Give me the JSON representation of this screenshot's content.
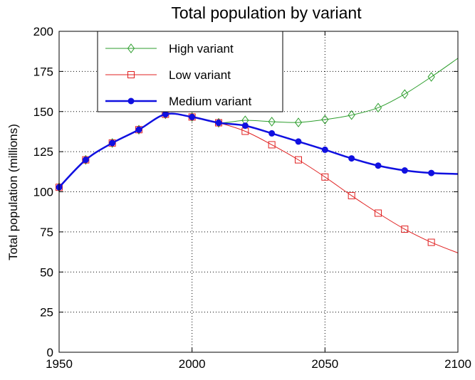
{
  "chart_data": {
    "type": "line",
    "title": "Total population by variant",
    "xlabel": "",
    "ylabel": "Total population (millions)",
    "xlim": [
      1950,
      2100
    ],
    "ylim": [
      0,
      200
    ],
    "xticks": [
      1950,
      2000,
      2050,
      2100
    ],
    "yticks": [
      0,
      25,
      50,
      75,
      100,
      125,
      150,
      175,
      200
    ],
    "grid": true,
    "legend_position": "top-left",
    "series": [
      {
        "name": "High variant",
        "color": "#2e9e2e",
        "marker": "diamond",
        "line_width": "thin",
        "x": [
          1950,
          1960,
          1970,
          1980,
          1990,
          2000,
          2010,
          2020,
          2030,
          2040,
          2050,
          2060,
          2070,
          2080,
          2090,
          2100
        ],
        "values": [
          102.8,
          119.9,
          130.4,
          138.7,
          148.3,
          146.6,
          143.0,
          144.5,
          143.7,
          143.2,
          145.0,
          147.8,
          152.4,
          160.9,
          171.6,
          183.2
        ]
      },
      {
        "name": "Low variant",
        "color": "#e02020",
        "marker": "square",
        "line_width": "thin",
        "x": [
          1950,
          1960,
          1970,
          1980,
          1990,
          2000,
          2010,
          2020,
          2030,
          2040,
          2050,
          2060,
          2070,
          2080,
          2090,
          2100
        ],
        "values": [
          102.8,
          119.9,
          130.4,
          138.7,
          148.3,
          146.6,
          143.0,
          137.7,
          129.3,
          119.9,
          109.2,
          97.6,
          86.7,
          76.7,
          68.5,
          61.9
        ]
      },
      {
        "name": "Medium variant",
        "color": "#1010e0",
        "marker": "dot",
        "line_width": "thick",
        "x": [
          1950,
          1960,
          1970,
          1980,
          1990,
          2000,
          2010,
          2020,
          2030,
          2040,
          2050,
          2060,
          2070,
          2080,
          2090,
          2100
        ],
        "values": [
          102.8,
          119.9,
          130.4,
          138.7,
          148.3,
          146.6,
          143.0,
          141.2,
          136.4,
          131.3,
          126.2,
          120.8,
          116.3,
          113.3,
          111.7,
          111.1
        ]
      }
    ]
  }
}
